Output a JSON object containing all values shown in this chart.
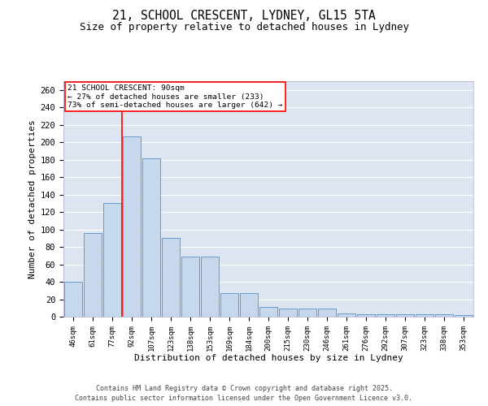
{
  "title_line1": "21, SCHOOL CRESCENT, LYDNEY, GL15 5TA",
  "title_line2": "Size of property relative to detached houses in Lydney",
  "xlabel": "Distribution of detached houses by size in Lydney",
  "ylabel": "Number of detached properties",
  "categories": [
    "46sqm",
    "61sqm",
    "77sqm",
    "92sqm",
    "107sqm",
    "123sqm",
    "138sqm",
    "153sqm",
    "169sqm",
    "184sqm",
    "200sqm",
    "215sqm",
    "230sqm",
    "246sqm",
    "261sqm",
    "276sqm",
    "292sqm",
    "307sqm",
    "323sqm",
    "338sqm",
    "353sqm"
  ],
  "values": [
    40,
    96,
    130,
    207,
    182,
    90,
    69,
    69,
    27,
    27,
    11,
    9,
    9,
    9,
    4,
    3,
    3,
    3,
    3,
    3,
    2
  ],
  "bar_color": "#c5d8ee",
  "bar_edge_color": "#6699cc",
  "background_color": "#dde6f0",
  "grid_color": "#ffffff",
  "red_line_index": 3,
  "annotation_title": "21 SCHOOL CRESCENT: 90sqm",
  "annotation_line2": "← 27% of detached houses are smaller (233)",
  "annotation_line3": "73% of semi-detached houses are larger (642) →",
  "footer_line1": "Contains HM Land Registry data © Crown copyright and database right 2025.",
  "footer_line2": "Contains public sector information licensed under the Open Government Licence v3.0.",
  "ylim": [
    0,
    270
  ],
  "yticks": [
    0,
    20,
    40,
    60,
    80,
    100,
    120,
    140,
    160,
    180,
    200,
    220,
    240,
    260
  ]
}
